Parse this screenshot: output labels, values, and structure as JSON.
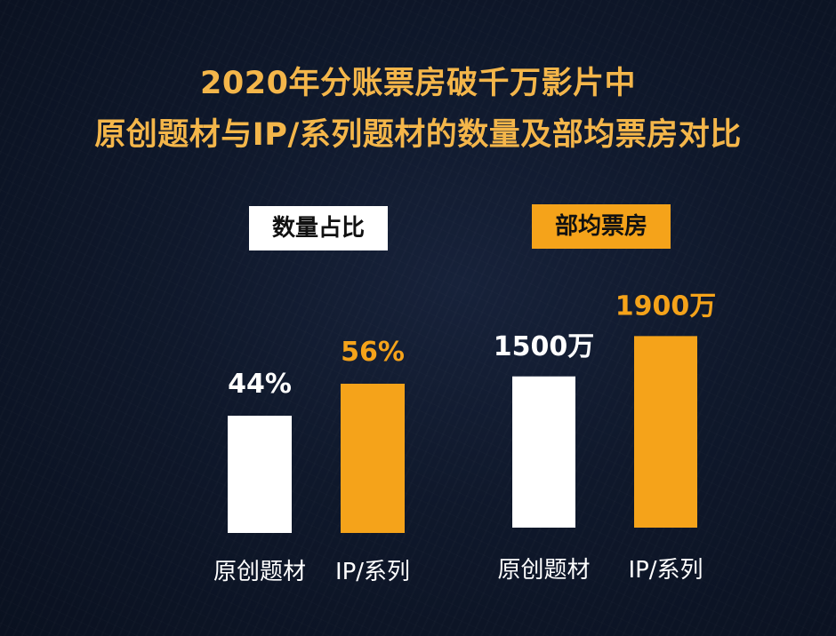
{
  "title_lines": [
    "2020年分账票房破千万影片中",
    "原创题材与IP/系列题材的数量及部均票房对比"
  ],
  "colors": {
    "white": "#ffffff",
    "orange": "#f5a31a",
    "title": "#f4b64a"
  },
  "chart_data": [
    {
      "type": "bar",
      "title": "数量占比",
      "categories": [
        "原创题材",
        "IP/系列"
      ],
      "values": [
        44,
        56
      ],
      "value_labels": [
        "44%",
        "56%"
      ],
      "unit": "%",
      "bar_colors": [
        "#ffffff",
        "#f5a31a"
      ],
      "label_colors": [
        "#ffffff",
        "#f5a31a"
      ]
    },
    {
      "type": "bar",
      "title": "部均票房",
      "categories": [
        "原创题材",
        "IP/系列"
      ],
      "values": [
        1500,
        1900
      ],
      "value_labels": [
        "1500万",
        "1900万"
      ],
      "unit": "万",
      "bar_colors": [
        "#ffffff",
        "#f5a31a"
      ],
      "label_colors": [
        "#ffffff",
        "#f5a31a"
      ]
    }
  ]
}
